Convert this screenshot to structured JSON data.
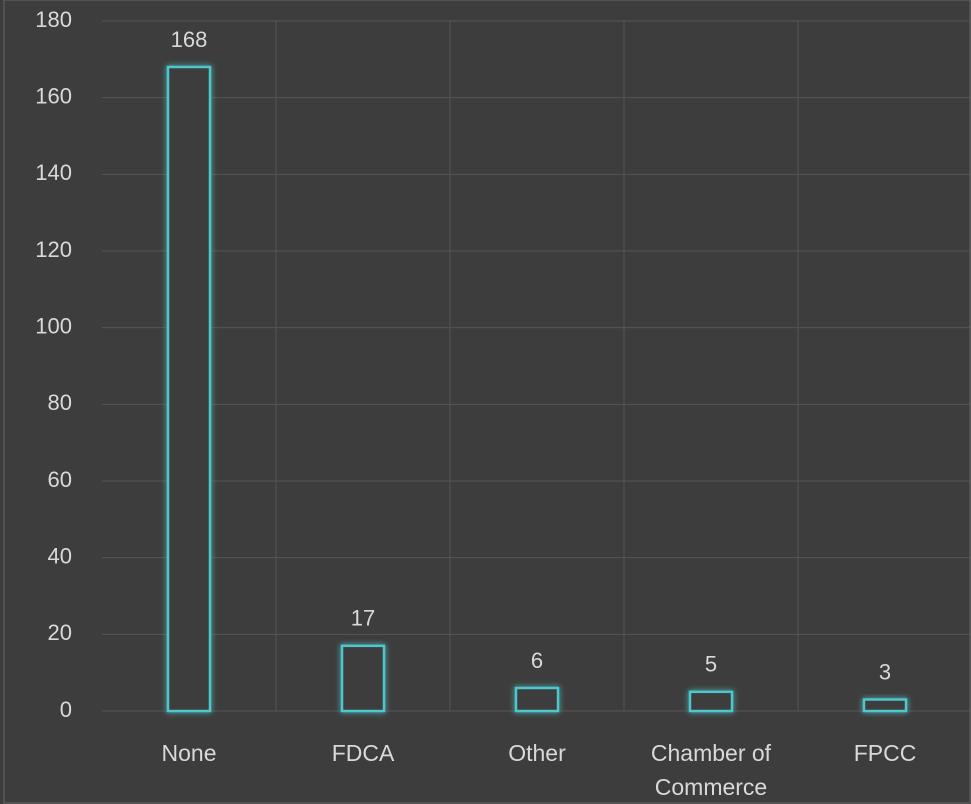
{
  "chart_data": {
    "type": "bar",
    "categories": [
      "None",
      "FDCA",
      "Other",
      "Chamber of Commerce",
      "FPCC"
    ],
    "values": [
      168,
      17,
      6,
      5,
      3
    ],
    "color": "#4fc6cc",
    "ylim": [
      0,
      180
    ],
    "yticks": [
      0,
      20,
      40,
      60,
      80,
      100,
      120,
      140,
      160,
      180
    ],
    "grid": true
  }
}
